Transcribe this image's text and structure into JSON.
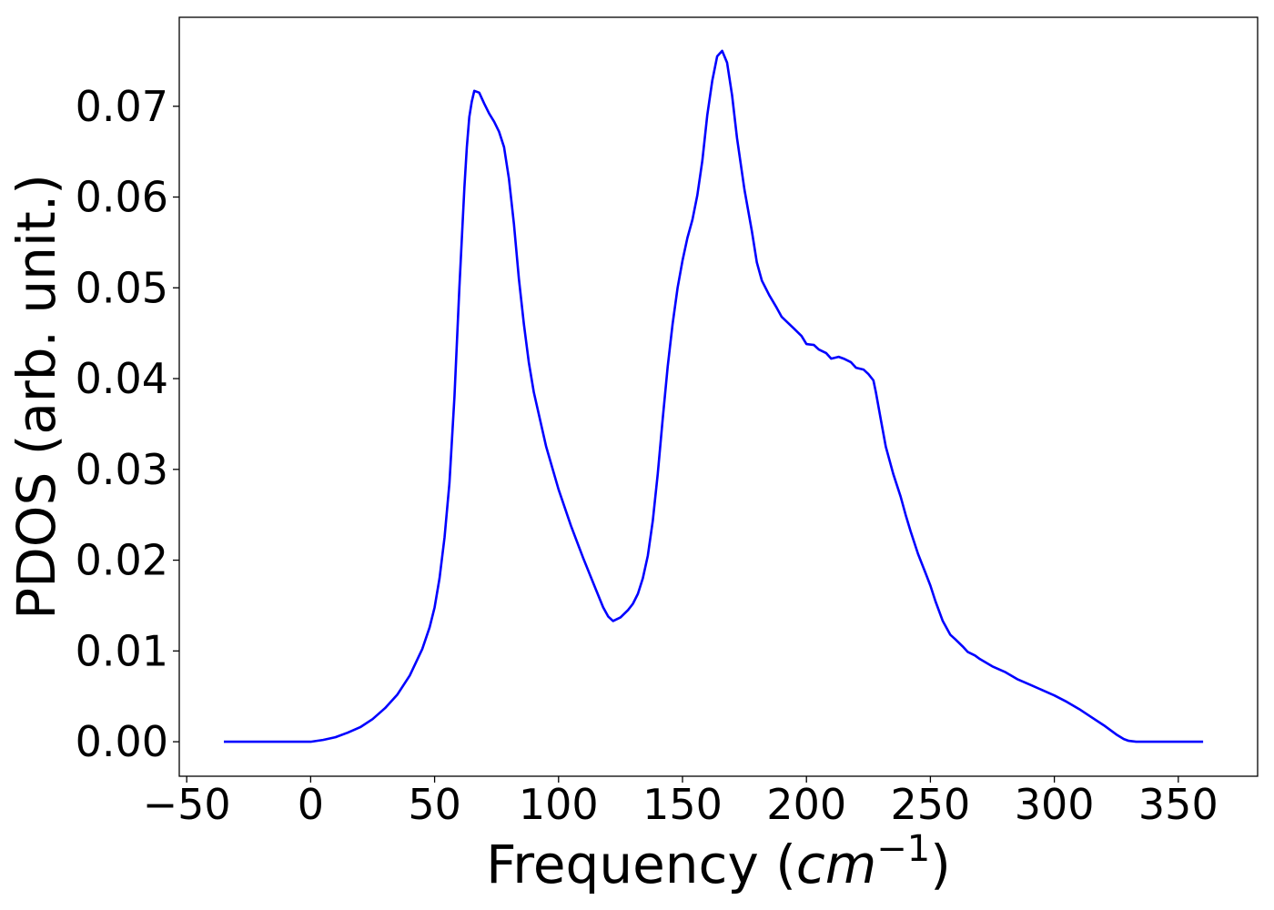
{
  "chart_data": {
    "type": "line",
    "title": "",
    "xlabel_parts": {
      "prefix": "Frequency (",
      "var": "cm",
      "sup": "−1",
      "suffix": ")"
    },
    "ylabel": "PDOS (arb. unit.)",
    "xlim": [
      -53,
      382
    ],
    "ylim": [
      -0.0038,
      0.0798
    ],
    "xticks": [
      -50,
      0,
      50,
      100,
      150,
      200,
      250,
      300,
      350
    ],
    "xtick_labels": [
      "−50",
      "0",
      "50",
      "100",
      "150",
      "200",
      "250",
      "300",
      "350"
    ],
    "yticks": [
      0.0,
      0.01,
      0.02,
      0.03,
      0.04,
      0.05,
      0.06,
      0.07
    ],
    "ytick_labels": [
      "0.00",
      "0.01",
      "0.02",
      "0.03",
      "0.04",
      "0.05",
      "0.06",
      "0.07"
    ],
    "grid": false,
    "legend": "none",
    "series": [
      {
        "color": "#0000ff",
        "x": [
          -35,
          -20,
          -10,
          0,
          5,
          10,
          15,
          20,
          25,
          30,
          35,
          40,
          45,
          48,
          50,
          52,
          54,
          56,
          58,
          60,
          62,
          63,
          64,
          65,
          66,
          68,
          70,
          72,
          74,
          76,
          78,
          80,
          82,
          84,
          86,
          88,
          90,
          95,
          100,
          105,
          110,
          115,
          118,
          120,
          122,
          125,
          128,
          130,
          132,
          134,
          136,
          138,
          140,
          142,
          144,
          146,
          148,
          150,
          152,
          154,
          156,
          158,
          160,
          162,
          164,
          166,
          168,
          170,
          172,
          175,
          178,
          180,
          182,
          185,
          188,
          190,
          195,
          198,
          200,
          203,
          205,
          208,
          210,
          213,
          215,
          218,
          220,
          223,
          225,
          227,
          228,
          230,
          232,
          235,
          238,
          240,
          242,
          245,
          248,
          250,
          252,
          255,
          258,
          260,
          263,
          265,
          268,
          270,
          275,
          280,
          285,
          290,
          295,
          300,
          305,
          310,
          315,
          320,
          325,
          328,
          330,
          333,
          335,
          340,
          350,
          360
        ],
        "y": [
          0.0,
          0.0,
          0.0,
          0.0,
          0.0002,
          0.0005,
          0.001,
          0.0016,
          0.0025,
          0.0037,
          0.0052,
          0.0073,
          0.0102,
          0.0126,
          0.0148,
          0.018,
          0.0225,
          0.0285,
          0.038,
          0.05,
          0.061,
          0.0655,
          0.0688,
          0.0705,
          0.0717,
          0.0715,
          0.0703,
          0.0692,
          0.0683,
          0.0672,
          0.0655,
          0.062,
          0.057,
          0.051,
          0.046,
          0.0418,
          0.0385,
          0.0325,
          0.0278,
          0.0238,
          0.0202,
          0.0168,
          0.0148,
          0.0138,
          0.0133,
          0.0137,
          0.0145,
          0.0152,
          0.0163,
          0.018,
          0.0205,
          0.0243,
          0.0295,
          0.0355,
          0.0413,
          0.046,
          0.05,
          0.053,
          0.0555,
          0.0575,
          0.0602,
          0.064,
          0.069,
          0.0728,
          0.0755,
          0.0761,
          0.0748,
          0.0712,
          0.0665,
          0.0608,
          0.0562,
          0.0528,
          0.0508,
          0.0492,
          0.0478,
          0.0468,
          0.0455,
          0.0447,
          0.0438,
          0.0437,
          0.0432,
          0.0428,
          0.0422,
          0.0424,
          0.0422,
          0.0418,
          0.0412,
          0.041,
          0.0405,
          0.0398,
          0.0385,
          0.0355,
          0.0325,
          0.0295,
          0.027,
          0.025,
          0.0232,
          0.0207,
          0.0186,
          0.0172,
          0.0155,
          0.0133,
          0.0118,
          0.0113,
          0.0105,
          0.0099,
          0.0095,
          0.0091,
          0.0083,
          0.0077,
          0.0069,
          0.0063,
          0.0057,
          0.0051,
          0.0044,
          0.0036,
          0.0027,
          0.0018,
          0.0008,
          0.0003,
          0.0001,
          0.0,
          0.0,
          0.0,
          0.0,
          0.0
        ]
      }
    ]
  }
}
